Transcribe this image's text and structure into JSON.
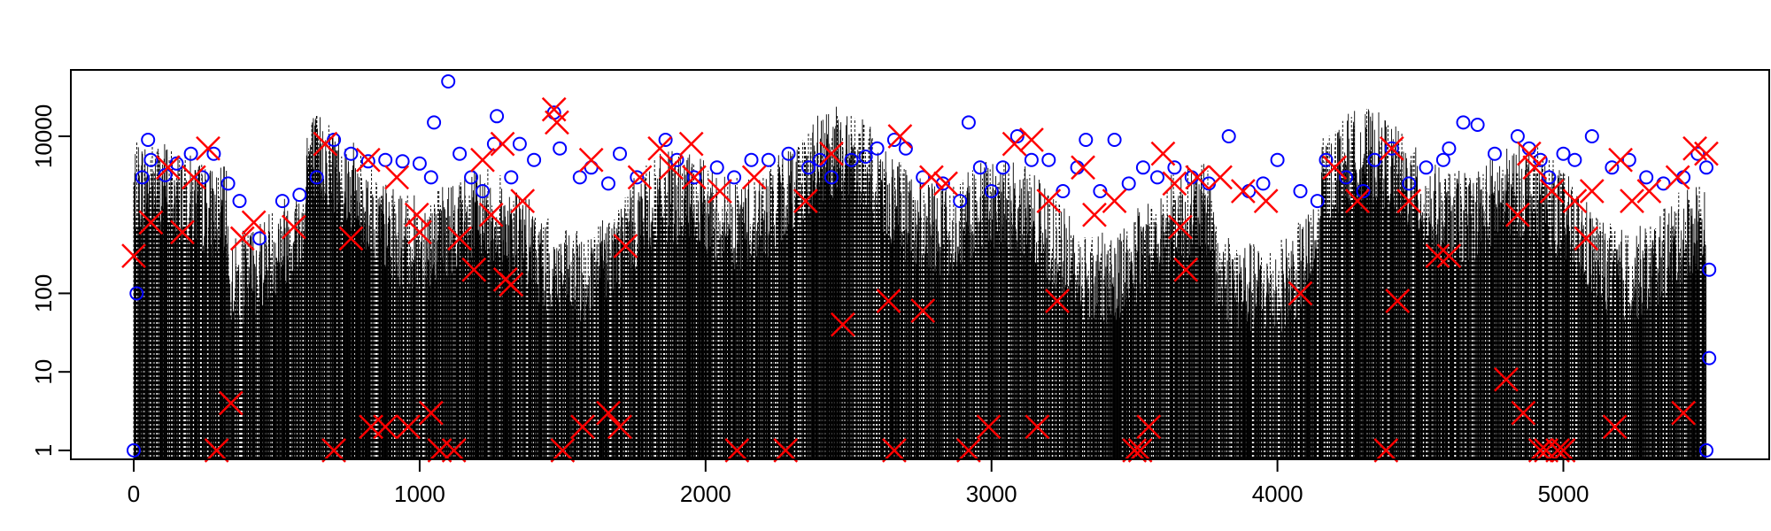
{
  "chart_data": {
    "type": "scatter",
    "title": "",
    "xlabel": "",
    "ylabel": "",
    "x_scale": "linear",
    "y_scale": "log",
    "xlim": [
      -220,
      5720
    ],
    "ylim": [
      0.77,
      70000
    ],
    "x_ticks": [
      {
        "value": 0,
        "label": "0"
      },
      {
        "value": 1000,
        "label": "1000"
      },
      {
        "value": 2000,
        "label": "2000"
      },
      {
        "value": 3000,
        "label": "3000"
      },
      {
        "value": 4000,
        "label": "4000"
      },
      {
        "value": 5000,
        "label": "5000"
      }
    ],
    "y_ticks": [
      {
        "value": 1,
        "label": "1"
      },
      {
        "value": 10,
        "label": "10"
      },
      {
        "value": 100,
        "label": "100"
      },
      {
        "value": 10000,
        "label": "10000"
      }
    ],
    "x_range": [
      0,
      5500
    ],
    "grid": false,
    "legend": "none",
    "colors": {
      "vertical_lines": "#000000",
      "circle_markers": "#0000ff",
      "cross_markers": "#ff0000",
      "axis": "#000000"
    },
    "series": [
      {
        "marker": "circle",
        "color": "#0000ff",
        "points": [
          [
            0,
            1
          ],
          [
            10,
            100
          ],
          [
            30,
            3000
          ],
          [
            50,
            9000
          ],
          [
            60,
            5000
          ],
          [
            110,
            3200
          ],
          [
            150,
            4500
          ],
          [
            200,
            6000
          ],
          [
            240,
            3000
          ],
          [
            280,
            6000
          ],
          [
            330,
            2500
          ],
          [
            370,
            1500
          ],
          [
            440,
            500
          ],
          [
            520,
            1500
          ],
          [
            580,
            1800
          ],
          [
            640,
            3000
          ],
          [
            700,
            9000
          ],
          [
            760,
            6000
          ],
          [
            820,
            4800
          ],
          [
            880,
            5000
          ],
          [
            940,
            4800
          ],
          [
            1000,
            4500
          ],
          [
            1040,
            3000
          ],
          [
            1050,
            15000
          ],
          [
            1100,
            50000
          ],
          [
            1140,
            6000
          ],
          [
            1180,
            3000
          ],
          [
            1220,
            2000
          ],
          [
            1260,
            8000
          ],
          [
            1270,
            18000
          ],
          [
            1320,
            3000
          ],
          [
            1350,
            8000
          ],
          [
            1400,
            5000
          ],
          [
            1470,
            20000
          ],
          [
            1490,
            7000
          ],
          [
            1560,
            3000
          ],
          [
            1600,
            4000
          ],
          [
            1660,
            2500
          ],
          [
            1700,
            6000
          ],
          [
            1760,
            3000
          ],
          [
            1860,
            9000
          ],
          [
            1900,
            5000
          ],
          [
            1960,
            3000
          ],
          [
            2040,
            4000
          ],
          [
            2100,
            3000
          ],
          [
            2160,
            5000
          ],
          [
            2220,
            5000
          ],
          [
            2290,
            6000
          ],
          [
            2360,
            4000
          ],
          [
            2400,
            5000
          ],
          [
            2440,
            3000
          ],
          [
            2510,
            5000
          ],
          [
            2560,
            5500
          ],
          [
            2600,
            7000
          ],
          [
            2660,
            9000
          ],
          [
            2700,
            7000
          ],
          [
            2760,
            3000
          ],
          [
            2830,
            2500
          ],
          [
            2890,
            1500
          ],
          [
            2920,
            15000
          ],
          [
            2960,
            4000
          ],
          [
            3000,
            2000
          ],
          [
            3040,
            4000
          ],
          [
            3090,
            10000
          ],
          [
            3140,
            5000
          ],
          [
            3200,
            5000
          ],
          [
            3250,
            2000
          ],
          [
            3300,
            4000
          ],
          [
            3330,
            9000
          ],
          [
            3380,
            2000
          ],
          [
            3430,
            9000
          ],
          [
            3480,
            2500
          ],
          [
            3530,
            4000
          ],
          [
            3580,
            3000
          ],
          [
            3640,
            4000
          ],
          [
            3700,
            3000
          ],
          [
            3760,
            2500
          ],
          [
            3830,
            10000
          ],
          [
            3900,
            2000
          ],
          [
            3950,
            2500
          ],
          [
            4000,
            5000
          ],
          [
            4080,
            2000
          ],
          [
            4140,
            1500
          ],
          [
            4170,
            5000
          ],
          [
            4240,
            3000
          ],
          [
            4300,
            2000
          ],
          [
            4340,
            5000
          ],
          [
            4400,
            7000
          ],
          [
            4460,
            2500
          ],
          [
            4520,
            4000
          ],
          [
            4580,
            5000
          ],
          [
            4600,
            7000
          ],
          [
            4650,
            15000
          ],
          [
            4700,
            14000
          ],
          [
            4760,
            6000
          ],
          [
            4840,
            10000
          ],
          [
            4880,
            7000
          ],
          [
            4920,
            5000
          ],
          [
            4950,
            3000
          ],
          [
            5000,
            6000
          ],
          [
            5040,
            5000
          ],
          [
            5100,
            10000
          ],
          [
            5170,
            4000
          ],
          [
            5230,
            5000
          ],
          [
            5290,
            3000
          ],
          [
            5350,
            2500
          ],
          [
            5420,
            3000
          ],
          [
            5470,
            6000
          ],
          [
            5500,
            4000
          ],
          [
            5510,
            200
          ],
          [
            5510,
            15
          ],
          [
            5500,
            1
          ]
        ]
      },
      {
        "marker": "cross",
        "color": "#ff0000",
        "points": [
          [
            0,
            300
          ],
          [
            60,
            800
          ],
          [
            120,
            4000
          ],
          [
            170,
            600
          ],
          [
            210,
            3000
          ],
          [
            260,
            7000
          ],
          [
            290,
            1
          ],
          [
            340,
            4
          ],
          [
            380,
            500
          ],
          [
            420,
            800
          ],
          [
            560,
            700
          ],
          [
            670,
            8000
          ],
          [
            700,
            1
          ],
          [
            760,
            500
          ],
          [
            820,
            5000
          ],
          [
            830,
            2
          ],
          [
            880,
            2
          ],
          [
            920,
            3000
          ],
          [
            960,
            2
          ],
          [
            990,
            1000
          ],
          [
            1000,
            600
          ],
          [
            1040,
            3
          ],
          [
            1070,
            1
          ],
          [
            1120,
            1
          ],
          [
            1140,
            500
          ],
          [
            1190,
            200
          ],
          [
            1220,
            5000
          ],
          [
            1250,
            1000
          ],
          [
            1290,
            8000
          ],
          [
            1300,
            150
          ],
          [
            1320,
            130
          ],
          [
            1360,
            1500
          ],
          [
            1470,
            22000
          ],
          [
            1480,
            15000
          ],
          [
            1500,
            1
          ],
          [
            1570,
            2
          ],
          [
            1600,
            5000
          ],
          [
            1660,
            3
          ],
          [
            1700,
            2
          ],
          [
            1720,
            400
          ],
          [
            1770,
            3000
          ],
          [
            1840,
            7000
          ],
          [
            1880,
            4000
          ],
          [
            1950,
            8000
          ],
          [
            1960,
            3000
          ],
          [
            2050,
            2000
          ],
          [
            2110,
            1
          ],
          [
            2170,
            3000
          ],
          [
            2280,
            1
          ],
          [
            2350,
            1500
          ],
          [
            2440,
            6000
          ],
          [
            2480,
            40
          ],
          [
            2640,
            80
          ],
          [
            2660,
            1
          ],
          [
            2680,
            10000
          ],
          [
            2760,
            60
          ],
          [
            2790,
            3000
          ],
          [
            2840,
            2500
          ],
          [
            2920,
            1
          ],
          [
            2990,
            2
          ],
          [
            3080,
            8000
          ],
          [
            3140,
            9000
          ],
          [
            3160,
            2
          ],
          [
            3200,
            1500
          ],
          [
            3230,
            80
          ],
          [
            3320,
            4000
          ],
          [
            3360,
            1000
          ],
          [
            3430,
            1500
          ],
          [
            3500,
            1
          ],
          [
            3520,
            1
          ],
          [
            3550,
            2
          ],
          [
            3600,
            6000
          ],
          [
            3640,
            2500
          ],
          [
            3660,
            700
          ],
          [
            3680,
            200
          ],
          [
            3720,
            3000
          ],
          [
            3800,
            3000
          ],
          [
            3880,
            2000
          ],
          [
            3960,
            1500
          ],
          [
            4080,
            100
          ],
          [
            4200,
            4000
          ],
          [
            4280,
            1500
          ],
          [
            4380,
            1
          ],
          [
            4400,
            7000
          ],
          [
            4420,
            80
          ],
          [
            4460,
            1500
          ],
          [
            4560,
            300
          ],
          [
            4600,
            300
          ],
          [
            4800,
            8
          ],
          [
            4840,
            1000
          ],
          [
            4860,
            3
          ],
          [
            4880,
            6000
          ],
          [
            4900,
            4000
          ],
          [
            4920,
            1
          ],
          [
            4940,
            1
          ],
          [
            4960,
            2000
          ],
          [
            4980,
            1
          ],
          [
            5000,
            1
          ],
          [
            5040,
            1500
          ],
          [
            5080,
            500
          ],
          [
            5100,
            2000
          ],
          [
            5180,
            2
          ],
          [
            5200,
            5000
          ],
          [
            5240,
            1500
          ],
          [
            5300,
            2000
          ],
          [
            5400,
            3000
          ],
          [
            5420,
            3
          ],
          [
            5460,
            7000
          ],
          [
            5500,
            6000
          ]
        ]
      }
    ]
  }
}
